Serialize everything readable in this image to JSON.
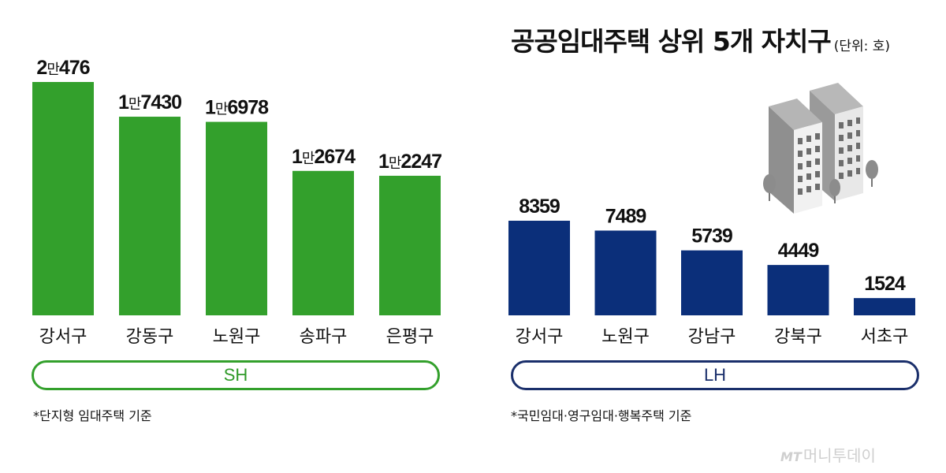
{
  "title": {
    "main": "공공임대주택 상위 5개 자치구",
    "unit": "(단위: 호)"
  },
  "chart_data": [
    {
      "type": "bar",
      "group_label": "SH",
      "categories": [
        "강서구",
        "강동구",
        "노원구",
        "송파구",
        "은평구"
      ],
      "values": [
        20476,
        17430,
        16978,
        12674,
        12247
      ],
      "value_labels": [
        {
          "lead": "2",
          "man": "만",
          "rest": "476"
        },
        {
          "lead": "1",
          "man": "만",
          "rest": "7430"
        },
        {
          "lead": "1",
          "man": "만",
          "rest": "6978"
        },
        {
          "lead": "1",
          "man": "만",
          "rest": "2674"
        },
        {
          "lead": "1",
          "man": "만",
          "rest": "2247"
        }
      ],
      "color": "#33a02c",
      "footnote": "*단지형 임대주택 기준"
    },
    {
      "type": "bar",
      "group_label": "LH",
      "categories": [
        "강서구",
        "노원구",
        "강남구",
        "강북구",
        "서초구"
      ],
      "values": [
        8359,
        7489,
        5739,
        4449,
        1524
      ],
      "value_labels": [
        {
          "lead": "",
          "man": "",
          "rest": "8359"
        },
        {
          "lead": "",
          "man": "",
          "rest": "7489"
        },
        {
          "lead": "",
          "man": "",
          "rest": "5739"
        },
        {
          "lead": "",
          "man": "",
          "rest": "4449"
        },
        {
          "lead": "",
          "man": "",
          "rest": "1524"
        }
      ],
      "color": "#0b2f7a",
      "footnote": "*국민임대·영구임대·행복주택 기준"
    }
  ],
  "brand": {
    "mt": "MT",
    "name": "머니투데이"
  },
  "colors": {
    "sh": "#33a02c",
    "lh": "#0b2f7a",
    "lh_outline": "#1a2f6b"
  },
  "icons": {
    "illustration": "apartment-buildings-icon"
  }
}
